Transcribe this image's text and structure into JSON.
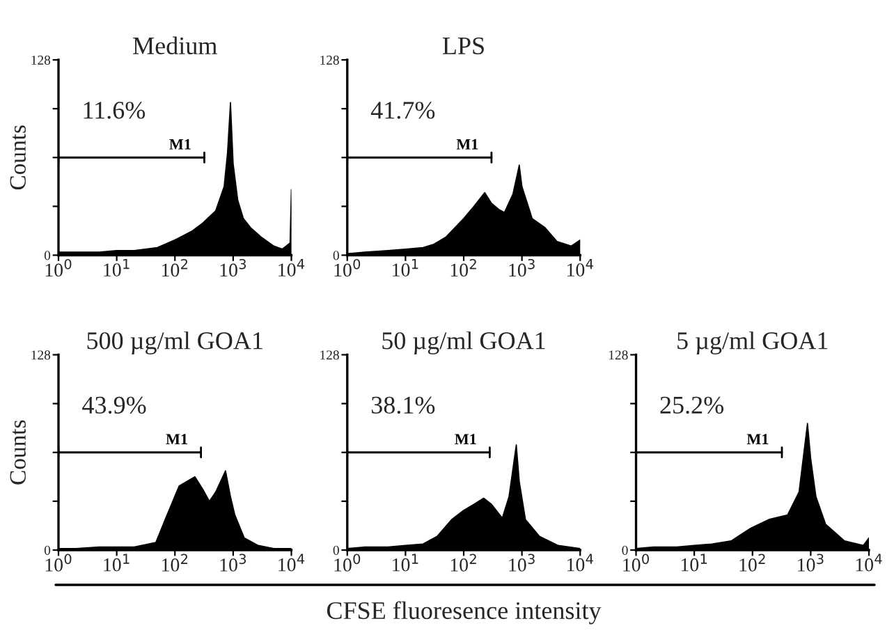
{
  "chart_data": [
    {
      "type": "area",
      "title": "Medium",
      "ylabel": "Counts",
      "log": "x",
      "xlim": [
        1,
        10000
      ],
      "ylim": [
        0,
        128
      ],
      "xticks": [
        {
          "value": 1,
          "label": "10$^{0}$"
        },
        {
          "value": 10,
          "label": "10$^{1}$"
        },
        {
          "value": 100,
          "label": "10$^{2}$"
        },
        {
          "value": 1000,
          "label": "10$^{3}$"
        },
        {
          "value": 10000,
          "label": "10$^{4}$"
        }
      ],
      "yticks": [
        0,
        {
          "value": 32,
          "label": null
        },
        {
          "value": 64,
          "label": null
        },
        {
          "value": 96,
          "label": null
        },
        128
      ],
      "x": [
        1,
        2,
        5,
        10,
        20,
        50,
        100,
        200,
        300,
        500,
        700,
        800,
        900,
        1000,
        1200,
        1500,
        2000,
        3000,
        5000,
        7000,
        9500,
        10000
      ],
      "series": [
        {
          "color": "#000000",
          "values": [
            2,
            2,
            2,
            3,
            3,
            5,
            10,
            16,
            21,
            29,
            45,
            67,
            100,
            60,
            36,
            24,
            18,
            12,
            6,
            4,
            8,
            43
          ]
        },
        {
          "type": "line",
          "name": "M1",
          "color": "#000000",
          "x": [
            1,
            320
          ],
          "values": [
            64,
            64
          ]
        }
      ],
      "annotations": [
        "11.6%"
      ]
    },
    {
      "type": "area",
      "title": "LPS",
      "log": "x",
      "xlim": [
        1,
        10000
      ],
      "ylim": [
        0,
        128
      ],
      "xticks": [
        {
          "value": 1,
          "label": "10$^{0}$"
        },
        {
          "value": 10,
          "label": "10$^{1}$"
        },
        {
          "value": 100,
          "label": "10$^{2}$"
        },
        {
          "value": 1000,
          "label": "10$^{3}$"
        },
        {
          "value": 10000,
          "label": "10$^{4}$"
        }
      ],
      "yticks": [
        0,
        {
          "value": 32,
          "label": null
        },
        {
          "value": 64,
          "label": null
        },
        {
          "value": 96,
          "label": null
        },
        128
      ],
      "x": [
        1,
        2,
        5,
        10,
        20,
        30,
        50,
        100,
        150,
        230,
        300,
        400,
        500,
        700,
        900,
        1000,
        1500,
        2500,
        4000,
        7000,
        10000
      ],
      "series": [
        {
          "color": "#000000",
          "values": [
            1,
            2,
            3,
            4,
            5,
            7,
            12,
            24,
            32,
            41,
            34,
            30,
            28,
            40,
            59,
            45,
            24,
            18,
            9,
            6,
            10
          ]
        },
        {
          "type": "line",
          "name": "M1",
          "color": "#000000",
          "x": [
            1,
            300
          ],
          "values": [
            64,
            64
          ]
        }
      ],
      "annotations": [
        "41.7%"
      ]
    },
    {
      "type": "area",
      "title": "500 µg/ml GOA1",
      "ylabel": "Counts",
      "log": "x",
      "xlim": [
        1,
        10000
      ],
      "ylim": [
        0,
        128
      ],
      "xticks": [
        {
          "value": 1,
          "label": "10$^{0}$"
        },
        {
          "value": 10,
          "label": "10$^{1}$"
        },
        {
          "value": 100,
          "label": "10$^{2}$"
        },
        {
          "value": 1000,
          "label": "10$^{3}$"
        },
        {
          "value": 10000,
          "label": "10$^{4}$"
        }
      ],
      "yticks": [
        0,
        {
          "value": 32,
          "label": null
        },
        {
          "value": 64,
          "label": null
        },
        {
          "value": 96,
          "label": null
        },
        128
      ],
      "x": [
        1,
        2,
        5,
        10,
        20,
        47,
        68,
        118,
        160,
        220,
        300,
        390,
        500,
        740,
        900,
        1070,
        1550,
        2700,
        5000,
        10000
      ],
      "series": [
        {
          "color": "#000000",
          "values": [
            1,
            1,
            2,
            2,
            2,
            5,
            20,
            42,
            45,
            48,
            40,
            32,
            38,
            52,
            35,
            23,
            8,
            3,
            1,
            1
          ]
        },
        {
          "type": "line",
          "name": "M1",
          "color": "#000000",
          "x": [
            1,
            280
          ],
          "values": [
            64,
            64
          ]
        }
      ],
      "annotations": [
        "43.9%"
      ]
    },
    {
      "type": "area",
      "title": "50 µg/ml GOA1",
      "xlabel": "CFSE fluoresence intensity",
      "log": "x",
      "xlim": [
        1,
        10000
      ],
      "ylim": [
        0,
        128
      ],
      "xticks": [
        {
          "value": 1,
          "label": "10$^{0}$"
        },
        {
          "value": 10,
          "label": "10$^{1}$"
        },
        {
          "value": 100,
          "label": "10$^{2}$"
        },
        {
          "value": 1000,
          "label": "10$^{3}$"
        },
        {
          "value": 10000,
          "label": "10$^{4}$"
        }
      ],
      "yticks": [
        0,
        {
          "value": 32,
          "label": null
        },
        {
          "value": 64,
          "label": null
        },
        {
          "value": 96,
          "label": null
        },
        128
      ],
      "x": [
        1,
        2,
        5,
        10,
        20,
        35,
        62,
        100,
        150,
        220,
        300,
        460,
        600,
        800,
        900,
        1150,
        2000,
        4200,
        10000
      ],
      "series": [
        {
          "color": "#000000",
          "values": [
            1,
            2,
            2,
            3,
            4,
            9,
            20,
            26,
            30,
            34,
            30,
            21,
            35,
            69,
            45,
            20,
            9,
            3,
            1
          ]
        },
        {
          "type": "line",
          "name": "M1",
          "color": "#000000",
          "x": [
            1,
            280
          ],
          "values": [
            64,
            64
          ]
        }
      ],
      "annotations": [
        "38.1%"
      ]
    },
    {
      "type": "area",
      "title": "5 µg/ml GOA1",
      "log": "x",
      "xlim": [
        1,
        10000
      ],
      "ylim": [
        0,
        128
      ],
      "xticks": [
        {
          "value": 1,
          "label": "10$^{0}$"
        },
        {
          "value": 10,
          "label": "10$^{1}$"
        },
        {
          "value": 100,
          "label": "10$^{2}$"
        },
        {
          "value": 1000,
          "label": "10$^{3}$"
        },
        {
          "value": 10000,
          "label": "10$^{4}$"
        }
      ],
      "yticks": [
        0,
        {
          "value": 32,
          "label": null
        },
        {
          "value": 64,
          "label": null
        },
        {
          "value": 96,
          "label": null
        },
        128
      ],
      "x": [
        1,
        2,
        5,
        10,
        20,
        43,
        90,
        190,
        400,
        630,
        880,
        1000,
        1230,
        1800,
        3800,
        8000,
        10000
      ],
      "series": [
        {
          "color": "#000000",
          "values": [
            1,
            2,
            2,
            3,
            4,
            6,
            14,
            20,
            23,
            38,
            83,
            60,
            35,
            17,
            6,
            3,
            8
          ]
        },
        {
          "type": "line",
          "name": "M1",
          "color": "#000000",
          "x": [
            1,
            320
          ],
          "values": [
            64,
            64
          ]
        }
      ],
      "annotations": [
        "25.2%"
      ]
    }
  ]
}
